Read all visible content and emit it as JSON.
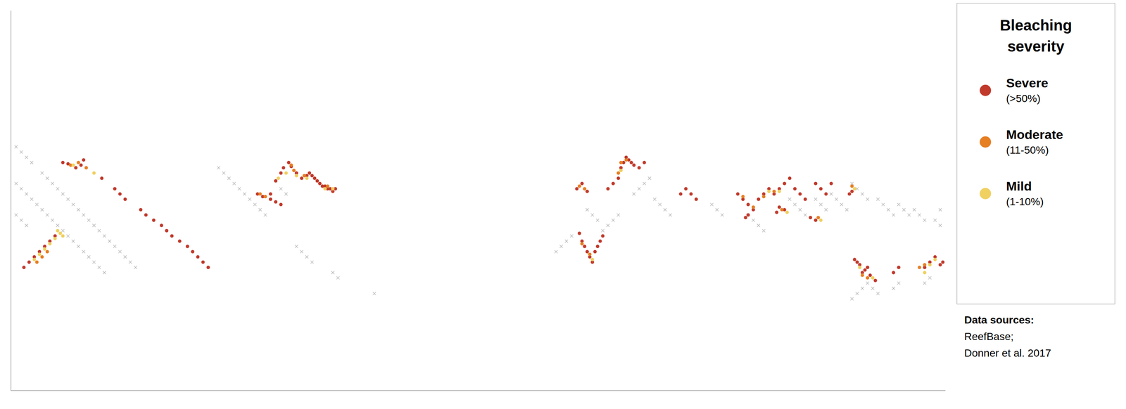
{
  "chart_data": {
    "type": "scatter",
    "legend_title": [
      "Bleaching",
      "severity"
    ],
    "annotations": [
      "Data sources:",
      "ReefBase;",
      "Donner et al. 2017"
    ],
    "xlim": [
      -180,
      180
    ],
    "ylim": [
      -65,
      80
    ],
    "tick_labels": false,
    "grid": false,
    "series": [
      {
        "color": "#aaaaaa",
        "marker": "x",
        "points": [
          [
            -178,
            28
          ],
          [
            -176,
            26
          ],
          [
            -174,
            24
          ],
          [
            -172,
            22
          ],
          [
            -168,
            18
          ],
          [
            -166,
            16
          ],
          [
            -164,
            14
          ],
          [
            -162,
            12
          ],
          [
            -160,
            10
          ],
          [
            -158,
            8
          ],
          [
            -156,
            6
          ],
          [
            -154,
            4
          ],
          [
            -152,
            2
          ],
          [
            -150,
            0
          ],
          [
            -148,
            -2
          ],
          [
            -146,
            -4
          ],
          [
            -144,
            -6
          ],
          [
            -142,
            -8
          ],
          [
            -140,
            -10
          ],
          [
            -138,
            -12
          ],
          [
            -136,
            -14
          ],
          [
            -134,
            -16
          ],
          [
            -132,
            -18
          ],
          [
            -178,
            14
          ],
          [
            -176,
            12
          ],
          [
            -174,
            10
          ],
          [
            -172,
            8
          ],
          [
            -170,
            6
          ],
          [
            -168,
            4
          ],
          [
            -166,
            2
          ],
          [
            -164,
            0
          ],
          [
            -162,
            -2
          ],
          [
            -160,
            -4
          ],
          [
            -158,
            -6
          ],
          [
            -156,
            -8
          ],
          [
            -154,
            -10
          ],
          [
            -152,
            -12
          ],
          [
            -150,
            -14
          ],
          [
            -148,
            -16
          ],
          [
            -146,
            -18
          ],
          [
            -144,
            -20
          ],
          [
            -100,
            20
          ],
          [
            -98,
            18
          ],
          [
            -96,
            16
          ],
          [
            -94,
            14
          ],
          [
            -92,
            12
          ],
          [
            -90,
            10
          ],
          [
            -88,
            8
          ],
          [
            -86,
            6
          ],
          [
            -84,
            4
          ],
          [
            -82,
            2
          ],
          [
            -76,
            12
          ],
          [
            -74,
            10
          ],
          [
            -70,
            -10
          ],
          [
            -68,
            -12
          ],
          [
            -66,
            -14
          ],
          [
            -64,
            -16
          ],
          [
            -56,
            -20
          ],
          [
            -54,
            -22
          ],
          [
            -40,
            -28
          ],
          [
            30,
            -12
          ],
          [
            32,
            -10
          ],
          [
            34,
            -8
          ],
          [
            36,
            -6
          ],
          [
            48,
            -4
          ],
          [
            50,
            -2
          ],
          [
            52,
            0
          ],
          [
            54,
            2
          ],
          [
            60,
            10
          ],
          [
            62,
            12
          ],
          [
            64,
            14
          ],
          [
            66,
            16
          ],
          [
            68,
            8
          ],
          [
            70,
            6
          ],
          [
            72,
            4
          ],
          [
            74,
            2
          ],
          [
            90,
            6
          ],
          [
            92,
            4
          ],
          [
            94,
            2
          ],
          [
            104,
            2
          ],
          [
            106,
            0
          ],
          [
            108,
            -2
          ],
          [
            110,
            -4
          ],
          [
            120,
            8
          ],
          [
            122,
            6
          ],
          [
            124,
            4
          ],
          [
            126,
            2
          ],
          [
            130,
            8
          ],
          [
            132,
            6
          ],
          [
            134,
            4
          ],
          [
            136,
            10
          ],
          [
            138,
            8
          ],
          [
            140,
            6
          ],
          [
            142,
            4
          ],
          [
            144,
            14
          ],
          [
            146,
            12
          ],
          [
            148,
            10
          ],
          [
            150,
            8
          ],
          [
            154,
            8
          ],
          [
            156,
            6
          ],
          [
            158,
            4
          ],
          [
            160,
            2
          ],
          [
            162,
            6
          ],
          [
            164,
            4
          ],
          [
            166,
            2
          ],
          [
            168,
            4
          ],
          [
            170,
            2
          ],
          [
            172,
            0
          ],
          [
            144,
            -30
          ],
          [
            146,
            -28
          ],
          [
            148,
            -26
          ],
          [
            150,
            -24
          ],
          [
            152,
            -26
          ],
          [
            154,
            -28
          ],
          [
            160,
            -26
          ],
          [
            162,
            -24
          ],
          [
            172,
            -24
          ],
          [
            174,
            -22
          ],
          [
            42,
            4
          ],
          [
            44,
            2
          ],
          [
            46,
            0
          ],
          [
            -178,
            2
          ],
          [
            -176,
            0
          ],
          [
            -174,
            -2
          ],
          [
            176,
            0
          ],
          [
            178,
            -2
          ],
          [
            178,
            4
          ]
        ]
      },
      {
        "name": "Severe",
        "sublabel": "(>50%)",
        "color": "#c0392b",
        "marker": "circle",
        "points": [
          [
            -160,
            22
          ],
          [
            -158,
            21.5
          ],
          [
            -155,
            20
          ],
          [
            -153,
            21
          ],
          [
            -152,
            23
          ],
          [
            -145,
            16
          ],
          [
            -140,
            12
          ],
          [
            -138,
            10
          ],
          [
            -136,
            8
          ],
          [
            -130,
            4
          ],
          [
            -128,
            2
          ],
          [
            -125,
            0
          ],
          [
            -122,
            -2
          ],
          [
            -120,
            -4
          ],
          [
            -118,
            -6
          ],
          [
            -115,
            -8
          ],
          [
            -112,
            -10
          ],
          [
            -110,
            -12
          ],
          [
            -108,
            -14
          ],
          [
            -106,
            -16
          ],
          [
            -104,
            -18
          ],
          [
            -175,
            -18
          ],
          [
            -173,
            -16
          ],
          [
            -171,
            -14
          ],
          [
            -169,
            -12
          ],
          [
            -167,
            -10
          ],
          [
            -165,
            -8
          ],
          [
            -163,
            -6
          ],
          [
            -85,
            10
          ],
          [
            -83,
            9
          ],
          [
            -80,
            10
          ],
          [
            -78,
            15
          ],
          [
            -76,
            18
          ],
          [
            -75,
            20
          ],
          [
            -73,
            22
          ],
          [
            -72,
            20.5
          ],
          [
            -70,
            18
          ],
          [
            -68,
            16
          ],
          [
            -66,
            17
          ],
          [
            -65,
            18
          ],
          [
            -64,
            17
          ],
          [
            -63,
            16
          ],
          [
            -62,
            15
          ],
          [
            -61,
            14
          ],
          [
            -60,
            13
          ],
          [
            -59,
            13
          ],
          [
            -58,
            12
          ],
          [
            -57,
            12
          ],
          [
            -56,
            11
          ],
          [
            -55,
            12
          ],
          [
            -80,
            8
          ],
          [
            -78,
            7
          ],
          [
            -76,
            6
          ],
          [
            39,
            -5
          ],
          [
            40,
            -8
          ],
          [
            41,
            -10
          ],
          [
            42,
            -12
          ],
          [
            43,
            -14
          ],
          [
            44,
            -16
          ],
          [
            45,
            -12
          ],
          [
            46,
            -10
          ],
          [
            47,
            -8
          ],
          [
            48,
            -6
          ],
          [
            50,
            12
          ],
          [
            52,
            14
          ],
          [
            54,
            16
          ],
          [
            55,
            20
          ],
          [
            56,
            22
          ],
          [
            57,
            24
          ],
          [
            58,
            23
          ],
          [
            59,
            22
          ],
          [
            60,
            21
          ],
          [
            62,
            20
          ],
          [
            64,
            22
          ],
          [
            80,
            12
          ],
          [
            82,
            10
          ],
          [
            84,
            8
          ],
          [
            78,
            10
          ],
          [
            100,
            10
          ],
          [
            102,
            8
          ],
          [
            104,
            6
          ],
          [
            106,
            4
          ],
          [
            108,
            8
          ],
          [
            110,
            10
          ],
          [
            112,
            12
          ],
          [
            114,
            10
          ],
          [
            116,
            12
          ],
          [
            118,
            14
          ],
          [
            120,
            16
          ],
          [
            122,
            12
          ],
          [
            124,
            10
          ],
          [
            126,
            8
          ],
          [
            130,
            14
          ],
          [
            132,
            12
          ],
          [
            134,
            10
          ],
          [
            136,
            14
          ],
          [
            145,
            -15
          ],
          [
            147,
            -17
          ],
          [
            149,
            -19
          ],
          [
            151,
            -21
          ],
          [
            153,
            -23
          ],
          [
            148,
            -20
          ],
          [
            150,
            -18
          ],
          [
            146,
            -16
          ],
          [
            160,
            -20
          ],
          [
            162,
            -18
          ],
          [
            172,
            -18
          ],
          [
            174,
            -16
          ],
          [
            176,
            -14
          ],
          [
            38,
            12
          ],
          [
            40,
            14
          ],
          [
            42,
            11
          ],
          [
            143,
            10
          ],
          [
            144,
            11
          ],
          [
            130,
            0
          ],
          [
            128,
            1
          ],
          [
            118,
            4
          ],
          [
            116,
            5
          ],
          [
            115,
            3
          ],
          [
            103,
            1
          ],
          [
            104,
            2
          ],
          [
            178,
            -17
          ],
          [
            179,
            -16
          ]
        ]
      },
      {
        "name": "Moderate",
        "sublabel": "(11-50%)",
        "color": "#e67e22",
        "marker": "circle",
        "points": [
          [
            -157,
            21
          ],
          [
            -154,
            22
          ],
          [
            -151,
            20
          ],
          [
            -170,
            -16
          ],
          [
            -168,
            -14
          ],
          [
            -166,
            -12
          ],
          [
            -84,
            10
          ],
          [
            -82,
            9
          ],
          [
            -72,
            21
          ],
          [
            -71,
            19
          ],
          [
            -67,
            17
          ],
          [
            -58,
            13
          ],
          [
            40,
            -9
          ],
          [
            43,
            -13
          ],
          [
            54,
            18
          ],
          [
            55,
            22
          ],
          [
            57,
            23
          ],
          [
            102,
            9
          ],
          [
            106,
            5
          ],
          [
            110,
            9
          ],
          [
            114,
            11
          ],
          [
            148,
            -21
          ],
          [
            150,
            -22
          ],
          [
            170,
            -18
          ],
          [
            172,
            -17
          ],
          [
            39,
            13
          ],
          [
            41,
            12
          ],
          [
            144,
            13
          ],
          [
            131,
            1
          ],
          [
            117,
            4
          ]
        ]
      },
      {
        "name": "Mild",
        "sublabel": "(1-10%)",
        "color": "#f0d060",
        "marker": "circle",
        "points": [
          [
            -156,
            21
          ],
          [
            -148,
            18
          ],
          [
            -171,
            -15
          ],
          [
            -169,
            -13
          ],
          [
            -167,
            -11
          ],
          [
            -165,
            -9
          ],
          [
            -163,
            -7
          ],
          [
            -161,
            -5
          ],
          [
            -77,
            16
          ],
          [
            -74,
            18
          ],
          [
            -70,
            17
          ],
          [
            -66,
            16
          ],
          [
            -59,
            12
          ],
          [
            -56,
            12
          ],
          [
            44,
            -15
          ],
          [
            55,
            19
          ],
          [
            112,
            11
          ],
          [
            116,
            11
          ],
          [
            147,
            -18
          ],
          [
            152,
            -22
          ],
          [
            174,
            -17
          ],
          [
            176,
            -15
          ],
          [
            172,
            -20
          ],
          [
            145,
            12
          ],
          [
            132,
            0
          ],
          [
            119,
            3
          ],
          [
            -162,
            -4
          ],
          [
            -160,
            -6
          ]
        ]
      }
    ]
  }
}
